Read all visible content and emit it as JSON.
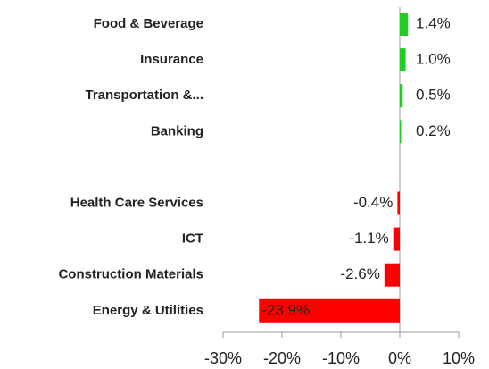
{
  "chart_data": {
    "type": "barh",
    "categories": [
      "Food & Beverage",
      "Insurance",
      "Transportation &...",
      "Banking",
      null,
      "Health Care Services",
      "ICT",
      "Construction Materials",
      "Energy & Utilities"
    ],
    "values": [
      1.4,
      1.0,
      0.5,
      0.2,
      null,
      -0.4,
      -1.1,
      -2.6,
      -23.9
    ],
    "value_labels": [
      "1.4%",
      "1.0%",
      "0.5%",
      "0.2%",
      null,
      "-0.4%",
      "-1.1%",
      "-2.6%",
      "-23.9%"
    ],
    "positive_color": "#22cc22",
    "negative_color": "#ff0000",
    "xlim": [
      -30,
      10
    ],
    "xticks": [
      {
        "value": -30,
        "label": "-30%"
      },
      {
        "value": -20,
        "label": "-20%"
      },
      {
        "value": -10,
        "label": "-10%"
      },
      {
        "value": 0,
        "label": "0%"
      },
      {
        "value": 10,
        "label": "10%"
      }
    ]
  }
}
